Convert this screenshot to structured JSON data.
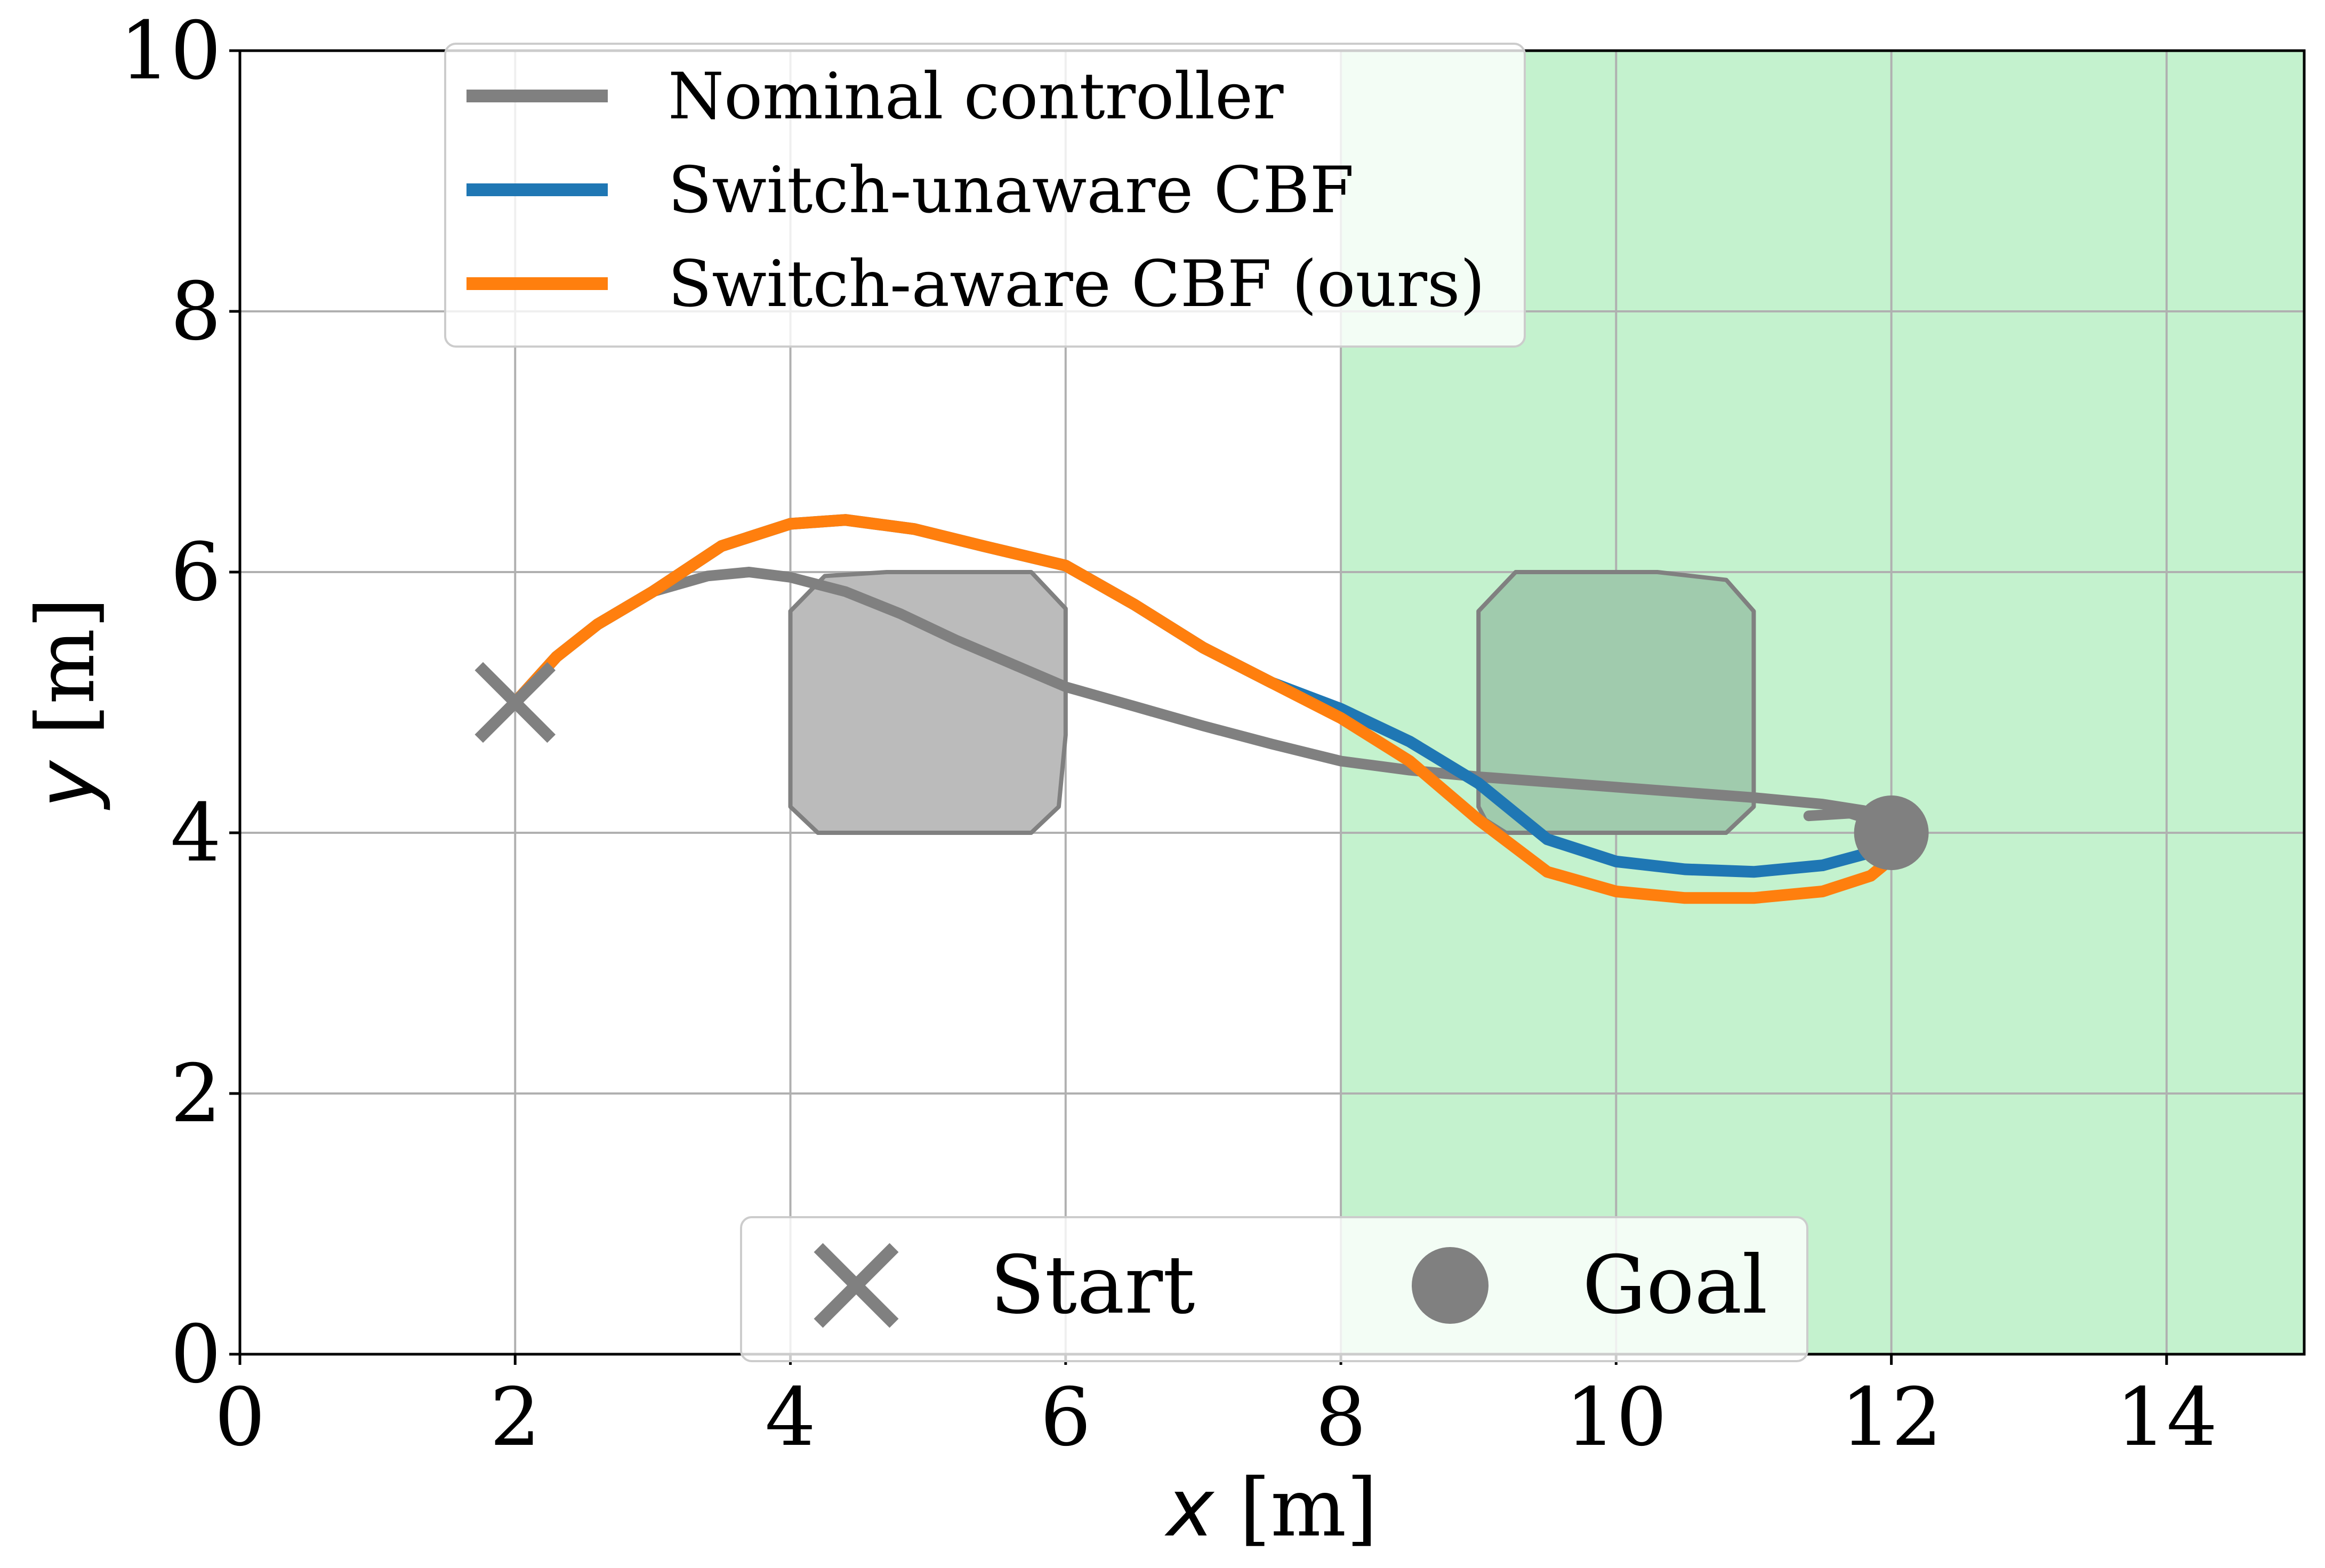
{
  "chart_data": {
    "type": "line",
    "xlabel_var": "x",
    "xlabel_unit": " [m]",
    "ylabel_var": "y",
    "ylabel_unit": " [m]",
    "xlim": [
      0,
      15
    ],
    "ylim": [
      0,
      10
    ],
    "xticks": [
      "0",
      "2",
      "4",
      "6",
      "8",
      "10",
      "12",
      "14"
    ],
    "yticks": [
      "0",
      "2",
      "4",
      "6",
      "8",
      "10"
    ],
    "grid": true,
    "region": {
      "x": [
        8,
        15
      ],
      "y": [
        0,
        10
      ],
      "color": "#c4f2ce"
    },
    "obstacles": [
      {
        "points": [
          [
            4.0,
            4.2
          ],
          [
            4.0,
            5.7
          ],
          [
            4.25,
            5.97
          ],
          [
            4.7,
            6.0
          ],
          [
            5.75,
            6.0
          ],
          [
            6.0,
            5.72
          ],
          [
            6.0,
            4.75
          ],
          [
            5.95,
            4.2
          ],
          [
            5.75,
            4.0
          ],
          [
            4.2,
            4.0
          ]
        ],
        "fill": "#bbbbbb",
        "stroke": "#808080"
      },
      {
        "points": [
          [
            9.0,
            4.2
          ],
          [
            9.0,
            5.7
          ],
          [
            9.27,
            6.0
          ],
          [
            10.3,
            6.0
          ],
          [
            10.8,
            5.94
          ],
          [
            11.0,
            5.7
          ],
          [
            11.0,
            4.2
          ],
          [
            10.8,
            4.0
          ],
          [
            9.2,
            4.0
          ],
          [
            9.05,
            4.1
          ]
        ],
        "fill": "#a0cbad",
        "stroke": "#808080"
      }
    ],
    "series": [
      {
        "name": "Nominal controller",
        "color": "#808080",
        "points": [
          [
            2.0,
            5.0
          ],
          [
            2.3,
            5.35
          ],
          [
            2.6,
            5.6
          ],
          [
            3.0,
            5.85
          ],
          [
            3.4,
            5.97
          ],
          [
            3.7,
            6.0
          ],
          [
            4.0,
            5.96
          ],
          [
            4.4,
            5.85
          ],
          [
            4.8,
            5.68
          ],
          [
            5.2,
            5.48
          ],
          [
            5.6,
            5.3
          ],
          [
            6.0,
            5.12
          ],
          [
            6.5,
            4.97
          ],
          [
            7.0,
            4.82
          ],
          [
            7.5,
            4.68
          ],
          [
            8.0,
            4.55
          ],
          [
            8.5,
            4.48
          ],
          [
            9.0,
            4.43
          ],
          [
            9.5,
            4.39
          ],
          [
            10.0,
            4.35
          ],
          [
            10.5,
            4.31
          ],
          [
            11.0,
            4.27
          ],
          [
            11.5,
            4.22
          ],
          [
            11.8,
            4.17
          ],
          [
            12.0,
            4.05
          ],
          [
            11.7,
            4.15
          ],
          [
            11.4,
            4.13
          ]
        ]
      },
      {
        "name": "Switch-unaware CBF",
        "color": "#1f77b4",
        "points": [
          [
            2.0,
            5.0
          ],
          [
            2.3,
            5.35
          ],
          [
            2.6,
            5.6
          ],
          [
            3.0,
            5.85
          ],
          [
            3.5,
            6.2
          ],
          [
            4.0,
            6.37
          ],
          [
            4.4,
            6.4
          ],
          [
            4.9,
            6.33
          ],
          [
            5.4,
            6.2
          ],
          [
            6.0,
            6.05
          ],
          [
            6.5,
            5.75
          ],
          [
            7.0,
            5.42
          ],
          [
            7.5,
            5.15
          ],
          [
            8.0,
            4.95
          ],
          [
            8.5,
            4.7
          ],
          [
            9.0,
            4.38
          ],
          [
            9.5,
            3.95
          ],
          [
            10.0,
            3.78
          ],
          [
            10.5,
            3.72
          ],
          [
            11.0,
            3.7
          ],
          [
            11.5,
            3.75
          ],
          [
            11.85,
            3.85
          ],
          [
            12.0,
            3.98
          ]
        ]
      },
      {
        "name": "Switch-aware CBF (ours)",
        "color": "#ff7f0e",
        "points": [
          [
            2.0,
            5.0
          ],
          [
            2.3,
            5.35
          ],
          [
            2.6,
            5.6
          ],
          [
            3.0,
            5.85
          ],
          [
            3.5,
            6.2
          ],
          [
            4.0,
            6.37
          ],
          [
            4.4,
            6.4
          ],
          [
            4.9,
            6.33
          ],
          [
            5.4,
            6.2
          ],
          [
            6.0,
            6.05
          ],
          [
            6.5,
            5.75
          ],
          [
            7.0,
            5.42
          ],
          [
            7.5,
            5.15
          ],
          [
            8.0,
            4.88
          ],
          [
            8.5,
            4.55
          ],
          [
            9.0,
            4.1
          ],
          [
            9.5,
            3.7
          ],
          [
            10.0,
            3.55
          ],
          [
            10.5,
            3.5
          ],
          [
            11.0,
            3.5
          ],
          [
            11.5,
            3.55
          ],
          [
            11.85,
            3.67
          ],
          [
            12.0,
            3.8
          ]
        ]
      }
    ],
    "start": {
      "x": 2,
      "y": 5,
      "color": "#808080"
    },
    "goal": {
      "x": 12,
      "y": 4,
      "color": "#808080"
    },
    "legend_lines": {
      "placement": "upper-left",
      "entries": [
        "Nominal controller",
        "Switch-unaware CBF",
        "Switch-aware CBF (ours)"
      ]
    },
    "legend_markers": {
      "placement": "lower-center",
      "start_label": "Start",
      "goal_label": "Goal"
    }
  }
}
